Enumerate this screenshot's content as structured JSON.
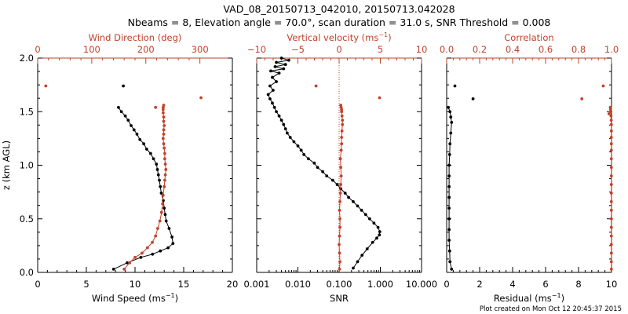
{
  "figure": {
    "title_line1": "VAD_08_20150713_042010, 20150713.042028",
    "title_line2": "Nbeams = 8, Elevation angle = 70.0°, scan duration = 31.0 s, SNR Threshold = 0.008",
    "footer": "Plot created on Mon Oct 12 20:45:37 2015",
    "colors": {
      "primary": "#000000",
      "secondary": "#c1422a"
    }
  },
  "chart_data": [
    {
      "type": "line",
      "panel": "wind",
      "y_label": "z (km AGL)",
      "y_range": [
        0,
        2.0
      ],
      "y_ticks": [
        "0.0",
        "0.5",
        "1.0",
        "1.5",
        "2.0"
      ],
      "bottom_axis": {
        "label_base": "Wind Speed (ms",
        "label_sup": "−1",
        "label_end": ")",
        "range": [
          0,
          20
        ],
        "ticks": [
          "0",
          "5",
          "10",
          "15",
          "20"
        ]
      },
      "top_axis": {
        "label": "Wind Direction (deg)",
        "range": [
          0,
          360
        ],
        "ticks": [
          "0",
          "100",
          "200",
          "300"
        ]
      },
      "series_bottom": {
        "x": [
          7.8,
          9.2,
          10.6,
          11.8,
          12.6,
          13.4,
          13.9,
          13.8,
          13.5,
          13.2,
          13.1,
          13.0,
          12.9,
          12.7,
          12.6,
          12.5,
          12.4,
          12.3,
          12.2,
          11.9,
          11.6,
          11.2,
          10.9,
          10.5,
          10.2,
          9.9,
          9.6,
          9.3,
          9.0,
          8.6,
          8.3
        ],
        "y": [
          0.03,
          0.09,
          0.14,
          0.17,
          0.2,
          0.23,
          0.27,
          0.33,
          0.41,
          0.48,
          0.54,
          0.6,
          0.67,
          0.74,
          0.8,
          0.86,
          0.91,
          0.96,
          1.01,
          1.06,
          1.11,
          1.15,
          1.2,
          1.24,
          1.29,
          1.33,
          1.37,
          1.42,
          1.46,
          1.5,
          1.54
        ],
        "outliers": [
          [
            8.8,
            1.74
          ]
        ]
      },
      "series_top": {
        "x": [
          160,
          170,
          180,
          193,
          203,
          212,
          218,
          222,
          226,
          229,
          231,
          232,
          234,
          235,
          236,
          237,
          236,
          235,
          235,
          234,
          233,
          232,
          233,
          233,
          234,
          233,
          233,
          232,
          232,
          232,
          233
        ],
        "y": [
          0.03,
          0.09,
          0.14,
          0.18,
          0.23,
          0.28,
          0.34,
          0.41,
          0.48,
          0.56,
          0.64,
          0.72,
          0.8,
          0.86,
          0.91,
          0.96,
          1.01,
          1.06,
          1.11,
          1.16,
          1.2,
          1.25,
          1.29,
          1.33,
          1.37,
          1.41,
          1.45,
          1.49,
          1.52,
          1.54,
          1.56
        ],
        "outliers": [
          [
            15,
            1.74
          ],
          [
            302,
            1.63
          ],
          [
            218,
            1.54
          ]
        ]
      }
    },
    {
      "type": "line",
      "panel": "snr",
      "y_range": [
        0,
        2.0
      ],
      "bottom_axis": {
        "label": "SNR",
        "scale": "log",
        "range": [
          0.001,
          10
        ],
        "ticks": [
          "0.001",
          "0.010",
          "0.100",
          "1.000",
          "10.000"
        ],
        "tick_values": [
          0.001,
          0.01,
          0.1,
          1,
          10
        ]
      },
      "top_axis": {
        "label_base": "Vertical velocity (ms",
        "label_sup": "−1",
        "label_end": ")",
        "range": [
          -10,
          10
        ],
        "ticks": [
          "−10",
          "−5",
          "0",
          "5",
          "10"
        ],
        "tick_values": [
          -10,
          -5,
          0,
          5,
          10
        ]
      },
      "series_bottom": {
        "x": [
          0.22,
          0.28,
          0.36,
          0.48,
          0.65,
          0.82,
          0.95,
          0.97,
          0.88,
          0.7,
          0.55,
          0.44,
          0.35,
          0.28,
          0.22,
          0.17,
          0.14,
          0.11,
          0.09,
          0.07,
          0.05,
          0.04,
          0.03,
          0.025,
          0.018,
          0.014,
          0.012,
          0.01,
          0.008,
          0.0065,
          0.0055,
          0.005,
          0.0045,
          0.004,
          0.0035,
          0.003,
          0.0027,
          0.0024,
          0.0021,
          0.0019,
          0.0025,
          0.0021,
          0.003,
          0.0024,
          0.0035,
          0.0022,
          0.0045,
          0.0028,
          0.005,
          0.003,
          0.006,
          0.004
        ],
        "y": [
          0.04,
          0.1,
          0.16,
          0.22,
          0.28,
          0.32,
          0.35,
          0.38,
          0.42,
          0.46,
          0.5,
          0.54,
          0.58,
          0.62,
          0.66,
          0.7,
          0.74,
          0.78,
          0.82,
          0.86,
          0.9,
          0.94,
          0.98,
          1.02,
          1.06,
          1.1,
          1.14,
          1.18,
          1.22,
          1.26,
          1.3,
          1.34,
          1.38,
          1.42,
          1.46,
          1.5,
          1.54,
          1.58,
          1.62,
          1.66,
          1.7,
          1.74,
          1.78,
          1.82,
          1.86,
          1.88,
          1.9,
          1.92,
          1.94,
          1.96,
          1.98,
          2.0
        ]
      },
      "series_top": {
        "x": [
          0.05,
          0.1,
          0.05,
          0.0,
          0.05,
          0.1,
          0.1,
          0.05,
          0.1,
          0.15,
          0.2,
          0.25,
          0.2,
          0.15,
          0.25,
          0.3,
          0.3,
          0.35,
          0.4,
          0.4,
          0.35,
          0.3,
          0.3,
          0.25,
          0.2
        ],
        "y": [
          0.03,
          0.1,
          0.18,
          0.26,
          0.34,
          0.42,
          0.5,
          0.58,
          0.66,
          0.74,
          0.82,
          0.9,
          0.98,
          1.06,
          1.14,
          1.2,
          1.26,
          1.32,
          1.38,
          1.42,
          1.46,
          1.5,
          1.52,
          1.54,
          1.56
        ],
        "outliers": [
          [
            -2.8,
            1.74
          ],
          [
            4.9,
            1.63
          ]
        ],
        "zero_line": true
      }
    },
    {
      "type": "line",
      "panel": "residual",
      "y_range": [
        0,
        2.0
      ],
      "bottom_axis": {
        "label_base": "Residual (ms",
        "label_sup": "−1",
        "label_end": ")",
        "range": [
          0,
          10
        ],
        "ticks": [
          "0",
          "2",
          "4",
          "6",
          "8",
          "10"
        ]
      },
      "top_axis": {
        "label": "Correlation",
        "range": [
          0,
          1.0
        ],
        "ticks": [
          "0.0",
          "0.2",
          "0.4",
          "0.6",
          "0.8",
          "1.0"
        ]
      },
      "series_bottom": {
        "x": [
          0.3,
          0.2,
          0.18,
          0.15,
          0.15,
          0.15,
          0.15,
          0.15,
          0.15,
          0.15,
          0.15,
          0.18,
          0.2,
          0.25,
          0.3,
          0.25,
          0.2,
          0.1
        ],
        "y": [
          0.03,
          0.1,
          0.2,
          0.3,
          0.4,
          0.5,
          0.6,
          0.7,
          0.8,
          0.9,
          1.0,
          1.1,
          1.2,
          1.3,
          1.4,
          1.45,
          1.5,
          1.54
        ],
        "outliers": [
          [
            0.5,
            1.74
          ],
          [
            1.6,
            1.62
          ]
        ]
      },
      "series_top": {
        "x": [
          0.999,
          0.999,
          0.999,
          0.999,
          0.999,
          0.999,
          0.999,
          0.999,
          0.999,
          0.999,
          0.999,
          0.999,
          0.999,
          0.999,
          0.999,
          0.999,
          0.999,
          0.999,
          0.999,
          0.998,
          0.997,
          0.996,
          0.994,
          0.993
        ],
        "y": [
          0.03,
          0.1,
          0.18,
          0.26,
          0.34,
          0.42,
          0.5,
          0.58,
          0.66,
          0.74,
          0.82,
          0.9,
          0.98,
          1.06,
          1.14,
          1.2,
          1.26,
          1.32,
          1.38,
          1.42,
          1.46,
          1.5,
          1.52,
          1.54
        ],
        "outliers": [
          [
            0.95,
            1.74
          ],
          [
            0.82,
            1.62
          ],
          [
            0.985,
            1.48
          ]
        ]
      }
    }
  ]
}
